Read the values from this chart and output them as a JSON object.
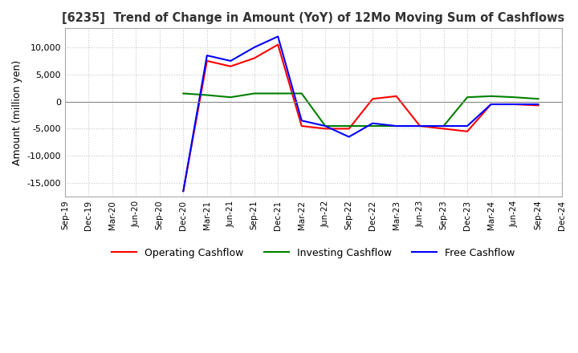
{
  "title": "[6235]  Trend of Change in Amount (YoY) of 12Mo Moving Sum of Cashflows",
  "ylabel": "Amount (million yen)",
  "x_labels": [
    "Sep-19",
    "Dec-19",
    "Mar-20",
    "Jun-20",
    "Sep-20",
    "Dec-20",
    "Mar-21",
    "Jun-21",
    "Sep-21",
    "Dec-21",
    "Mar-22",
    "Jun-22",
    "Sep-22",
    "Dec-22",
    "Mar-23",
    "Jun-23",
    "Sep-23",
    "Dec-23",
    "Mar-24",
    "Jun-24",
    "Sep-24",
    "Dec-24"
  ],
  "operating": [
    null,
    null,
    null,
    null,
    null,
    -16500,
    7500,
    6500,
    8000,
    10500,
    -4500,
    -5000,
    -5000,
    500,
    1000,
    -4500,
    -5000,
    -5500,
    -500,
    -500,
    -700,
    null
  ],
  "investing": [
    null,
    null,
    null,
    null,
    null,
    1500,
    1200,
    800,
    1500,
    1500,
    1500,
    -4500,
    -4500,
    -4500,
    -4500,
    -4500,
    -4500,
    800,
    1000,
    800,
    500,
    null
  ],
  "free": [
    null,
    null,
    null,
    null,
    null,
    -16500,
    8500,
    7500,
    10000,
    12000,
    -3500,
    -4500,
    -6500,
    -4000,
    -4500,
    -4500,
    -4500,
    -4500,
    -500,
    -500,
    -500,
    null
  ],
  "operating_color": "#ff0000",
  "investing_color": "#008000",
  "free_color": "#0000ff",
  "ylim": [
    -17500,
    13500
  ],
  "yticks": [
    -15000,
    -10000,
    -5000,
    0,
    5000,
    10000
  ],
  "background_color": "#ffffff",
  "grid_color": "#c8c8c8"
}
